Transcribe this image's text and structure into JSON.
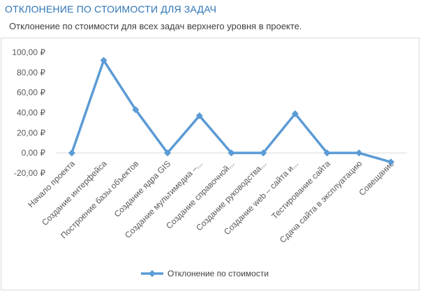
{
  "report": {
    "title": "ОТКЛОНЕНИЕ ПО СТОИМОСТИ ДЛЯ ЗАДАЧ",
    "subtitle": "Отклонение по стоимости для всех задач верхнего уровня в проекте."
  },
  "chart_data": {
    "type": "line",
    "categories": [
      "Начало проекта",
      "Создание интерфейса",
      "Построение базы объектов",
      "Создание ядра GIS",
      "Создание мультимедиа –...",
      "Создание справочной...",
      "Создание руководства...",
      "Создание web – сайта и...",
      "Тестирование сайта",
      "Сдача сайта в эксплуатацию",
      "Совещание"
    ],
    "series": [
      {
        "name": "Отклонение по стоимости",
        "values": [
          0,
          92,
          43,
          0,
          37,
          0,
          0,
          39,
          0,
          0,
          -9
        ],
        "color": "#5b9bd5"
      }
    ],
    "yticks": [
      "100,00 ₽",
      "80,00 ₽",
      "60,00 ₽",
      "40,00 ₽",
      "20,00 ₽",
      "0,00 ₽",
      "-20,00 ₽"
    ],
    "ylim": [
      -20,
      100
    ],
    "grid": false,
    "legend": "bottom",
    "axis_color": "#d9d9d9"
  }
}
